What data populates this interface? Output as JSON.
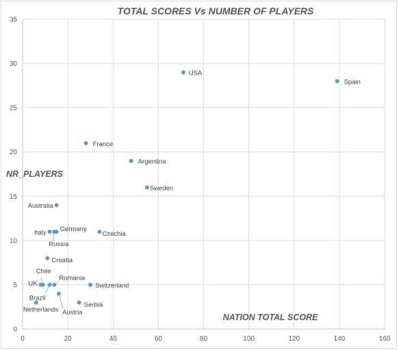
{
  "chart_data": {
    "type": "scatter",
    "title": "TOTAL SCORES  Vs NUMBER OF PLAYERS",
    "xlabel": "NATION TOTAL SCORE",
    "ylabel": "NR_PLAYERS",
    "xlim": [
      0,
      160
    ],
    "ylim": [
      0,
      35
    ],
    "xticks": [
      0,
      20,
      40,
      60,
      80,
      100,
      120,
      140,
      160
    ],
    "yticks": [
      0,
      5,
      10,
      15,
      20,
      25,
      30,
      35
    ],
    "grid": true,
    "points": [
      {
        "label": "USA",
        "x": 71,
        "y": 29
      },
      {
        "label": "Spain",
        "x": 139,
        "y": 28
      },
      {
        "label": "France",
        "x": 28,
        "y": 21
      },
      {
        "label": "Argentina",
        "x": 48,
        "y": 19
      },
      {
        "label": "Sweden",
        "x": 55,
        "y": 16
      },
      {
        "label": "Australia",
        "x": 15,
        "y": 14
      },
      {
        "label": "Italy",
        "x": 12,
        "y": 11
      },
      {
        "label": "Germany",
        "x": 15,
        "y": 11
      },
      {
        "label": "Russia",
        "x": 14,
        "y": 11
      },
      {
        "label": "Czechia",
        "x": 34,
        "y": 11
      },
      {
        "label": "Croatia",
        "x": 11,
        "y": 8
      },
      {
        "label": "Chile",
        "x": 9,
        "y": 5
      },
      {
        "label": "UK",
        "x": 8,
        "y": 5
      },
      {
        "label": "Romania",
        "x": 14,
        "y": 5
      },
      {
        "label": "Switzerland",
        "x": 30,
        "y": 5
      },
      {
        "label": "Brazil",
        "x": 12,
        "y": 5
      },
      {
        "label": "Austria",
        "x": 16,
        "y": 4
      },
      {
        "label": "Netherlands",
        "x": 6,
        "y": 3
      },
      {
        "label": "Serbia",
        "x": 25,
        "y": 3
      }
    ]
  }
}
